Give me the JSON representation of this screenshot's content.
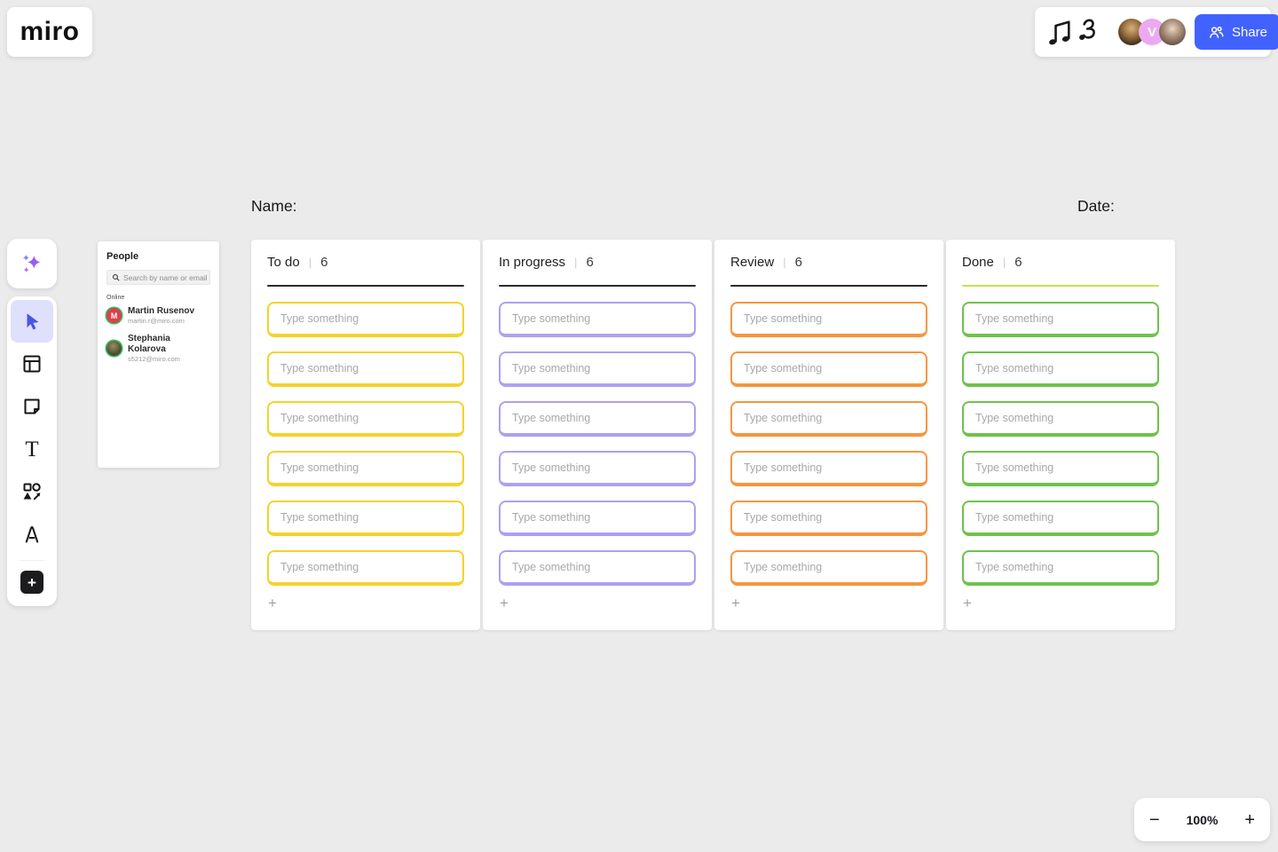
{
  "topbar": {
    "logo": "miro",
    "share_label": "Share",
    "collaborators": [
      {
        "label": ""
      },
      {
        "label": "V",
        "color": "#eba9f1"
      },
      {
        "label": ""
      }
    ]
  },
  "toolbar": {
    "tools": [
      "ai-assistant",
      "select",
      "frames",
      "sticky-note",
      "text",
      "shapes",
      "pen",
      "add"
    ],
    "active_tool": "select",
    "active_accent": "#4a55e2"
  },
  "people_panel": {
    "title": "People",
    "search_placeholder": "Search by name or email",
    "section_label": "Online",
    "members": [
      {
        "name": "Martin Rusenov",
        "email": "martin.r@miro.com",
        "initial": "M",
        "avatar_color": "#df3e4e"
      },
      {
        "name": "Stephania Kolarova",
        "email": "s5212@miro.com",
        "initial": ""
      }
    ]
  },
  "canvas": {
    "name_label": "Name:",
    "date_label": "Date:"
  },
  "board": {
    "card_placeholder": "Type something",
    "add_label": "+",
    "columns": [
      {
        "title": "To do",
        "count": 6,
        "accent": "#f5d22b",
        "underline": "#2b2b2b"
      },
      {
        "title": "In progress",
        "count": 6,
        "accent": "#aca1f2",
        "underline": "#2b2b2b"
      },
      {
        "title": "Review",
        "count": 6,
        "accent": "#f7953f",
        "underline": "#2b2b2b"
      },
      {
        "title": "Done",
        "count": 6,
        "accent": "#6fc24b",
        "underline": "#c8e04e"
      }
    ]
  },
  "zoom_controls": {
    "zoom_out": "−",
    "level": "100%",
    "zoom_in": "+"
  }
}
